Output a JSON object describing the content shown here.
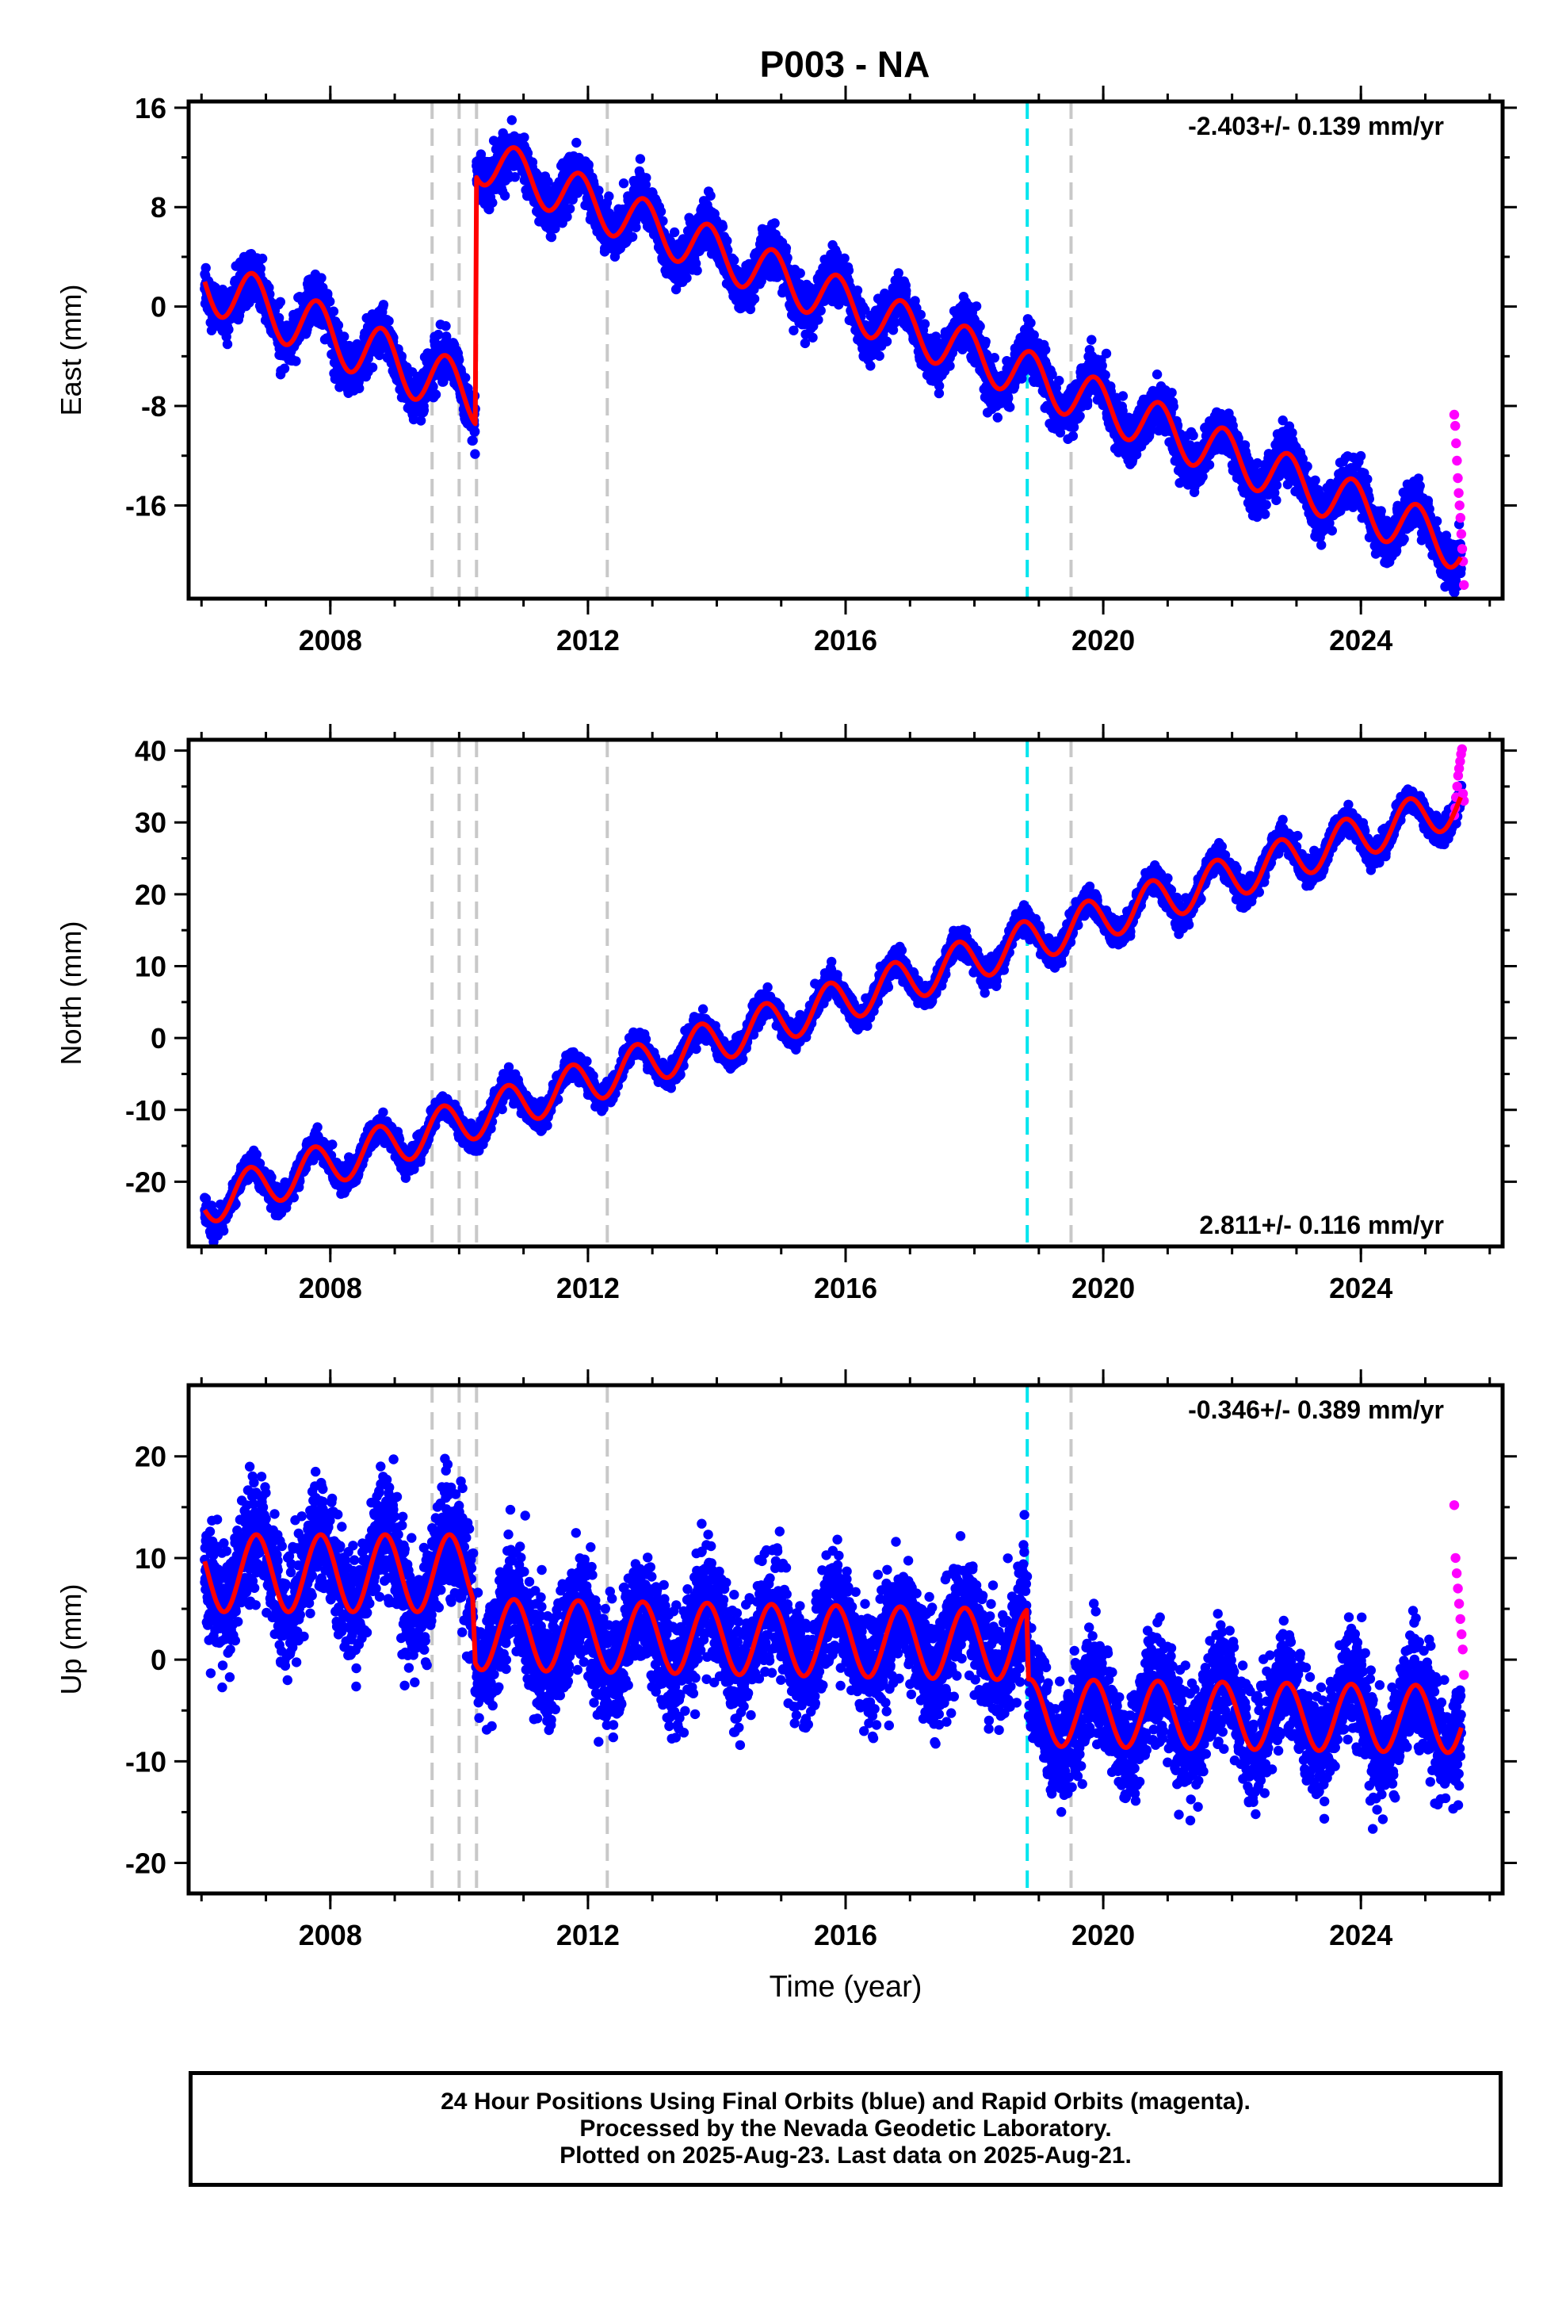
{
  "title": "P003 - NA",
  "chart_data": [
    {
      "type": "scatter",
      "ylabel": "East (mm)",
      "xlabel": "",
      "rate_label": "-2.403+/- 0.139 mm/yr",
      "rate_position": "top-right",
      "xlim": [
        2005.8,
        2026.2
      ],
      "ylim": [
        -23.5,
        16.5
      ],
      "xticks": [
        2008,
        2012,
        2016,
        2020,
        2024
      ],
      "yticks": [
        -16,
        -8,
        0,
        8,
        16
      ],
      "series": [
        {
          "color": "#0000ff",
          "kind": "points"
        },
        {
          "color": "#ff00ff",
          "kind": "points"
        },
        {
          "color": "#ff0000",
          "kind": "line"
        }
      ],
      "model": {
        "segments": [
          {
            "start": 2006.05,
            "end": 2010.25,
            "offset": 2.0,
            "slope": -2.2,
            "annual_amp": 2.3,
            "annual_phase": 0.55,
            "noise": 1.2
          },
          {
            "start": 2010.27,
            "end": 2025.56,
            "offset": 12.0,
            "slope": -2.05,
            "annual_amp": 2.0,
            "annual_phase": 0.62,
            "noise": 1.2
          }
        ],
        "rapid": {
          "start": 2025.45,
          "end": 2025.6,
          "values": [
            -8.7,
            -9.6,
            -11,
            -12.4,
            -13.8,
            -15,
            -16,
            -17,
            -18.3,
            -19.5,
            -20.5,
            -22.4
          ]
        }
      },
      "vlines": [
        {
          "x": 2009.58,
          "color": "#c8c8c8"
        },
        {
          "x": 2010.0,
          "color": "#c8c8c8"
        },
        {
          "x": 2010.27,
          "color": "#c8c8c8"
        },
        {
          "x": 2012.3,
          "color": "#c8c8c8"
        },
        {
          "x": 2018.82,
          "color": "#00e5ee"
        },
        {
          "x": 2019.5,
          "color": "#c8c8c8"
        }
      ]
    },
    {
      "type": "scatter",
      "ylabel": "North (mm)",
      "xlabel": "",
      "rate_label": "2.811+/- 0.116 mm/yr",
      "rate_position": "bottom-right",
      "xlim": [
        2005.8,
        2026.2
      ],
      "ylim": [
        -29,
        41.5
      ],
      "xticks": [
        2008,
        2012,
        2016,
        2020,
        2024
      ],
      "yticks": [
        -20,
        -10,
        0,
        10,
        20,
        30,
        40
      ],
      "series": [
        {
          "color": "#0000ff",
          "kind": "points"
        },
        {
          "color": "#ff00ff",
          "kind": "points"
        },
        {
          "color": "#ff0000",
          "kind": "line"
        }
      ],
      "model": {
        "segments": [
          {
            "start": 2006.05,
            "end": 2025.56,
            "offset": -23.0,
            "slope": 2.85,
            "annual_amp": 3.0,
            "annual_phase": 0.5,
            "noise": 1.1
          }
        ],
        "rapid": {
          "start": 2025.45,
          "end": 2025.6,
          "values": [
            31,
            32,
            33.5,
            35,
            36.5,
            37.5,
            38.5,
            39.5,
            40.2,
            34,
            33
          ]
        }
      },
      "vlines": [
        {
          "x": 2009.58,
          "color": "#c8c8c8"
        },
        {
          "x": 2010.0,
          "color": "#c8c8c8"
        },
        {
          "x": 2010.27,
          "color": "#c8c8c8"
        },
        {
          "x": 2012.3,
          "color": "#c8c8c8"
        },
        {
          "x": 2018.82,
          "color": "#00e5ee"
        },
        {
          "x": 2019.5,
          "color": "#c8c8c8"
        }
      ]
    },
    {
      "type": "scatter",
      "ylabel": "Up (mm)",
      "xlabel": "Time (year)",
      "rate_label": "-0.346+/- 0.389 mm/yr",
      "rate_position": "top-right",
      "xlim": [
        2005.8,
        2026.2
      ],
      "ylim": [
        -23,
        27
      ],
      "xticks": [
        2008,
        2012,
        2016,
        2020,
        2024
      ],
      "yticks": [
        -20,
        -10,
        0,
        10,
        20
      ],
      "series": [
        {
          "color": "#0000ff",
          "kind": "points"
        },
        {
          "color": "#ff00ff",
          "kind": "points"
        },
        {
          "color": "#ff0000",
          "kind": "line"
        }
      ],
      "model": {
        "segments": [
          {
            "start": 2006.05,
            "end": 2010.22,
            "offset": 8.5,
            "slope": 0.0,
            "annual_amp": 3.8,
            "annual_phase": 0.6,
            "noise": 3.6
          },
          {
            "start": 2010.25,
            "end": 2018.82,
            "offset": 2.5,
            "slope": -0.12,
            "annual_amp": 3.5,
            "annual_phase": 0.6,
            "noise": 3.6
          },
          {
            "start": 2018.84,
            "end": 2025.56,
            "offset": -5.2,
            "slope": -0.1,
            "annual_amp": 3.3,
            "annual_phase": 0.6,
            "noise": 3.4
          }
        ],
        "rapid": {
          "start": 2025.45,
          "end": 2025.6,
          "values": [
            15.2,
            10,
            8.5,
            7,
            5.5,
            4,
            2.5,
            1,
            -1.5
          ]
        }
      },
      "vlines": [
        {
          "x": 2009.58,
          "color": "#c8c8c8"
        },
        {
          "x": 2010.0,
          "color": "#c8c8c8"
        },
        {
          "x": 2010.27,
          "color": "#c8c8c8"
        },
        {
          "x": 2012.3,
          "color": "#c8c8c8"
        },
        {
          "x": 2018.82,
          "color": "#00e5ee"
        },
        {
          "x": 2019.5,
          "color": "#c8c8c8"
        }
      ]
    }
  ],
  "footer": {
    "line1": "24 Hour Positions Using Final Orbits (blue) and Rapid Orbits (magenta).",
    "line2": "Processed by the Nevada Geodetic Laboratory.",
    "line3": "Plotted on 2025-Aug-23. Last data on 2025-Aug-21."
  }
}
